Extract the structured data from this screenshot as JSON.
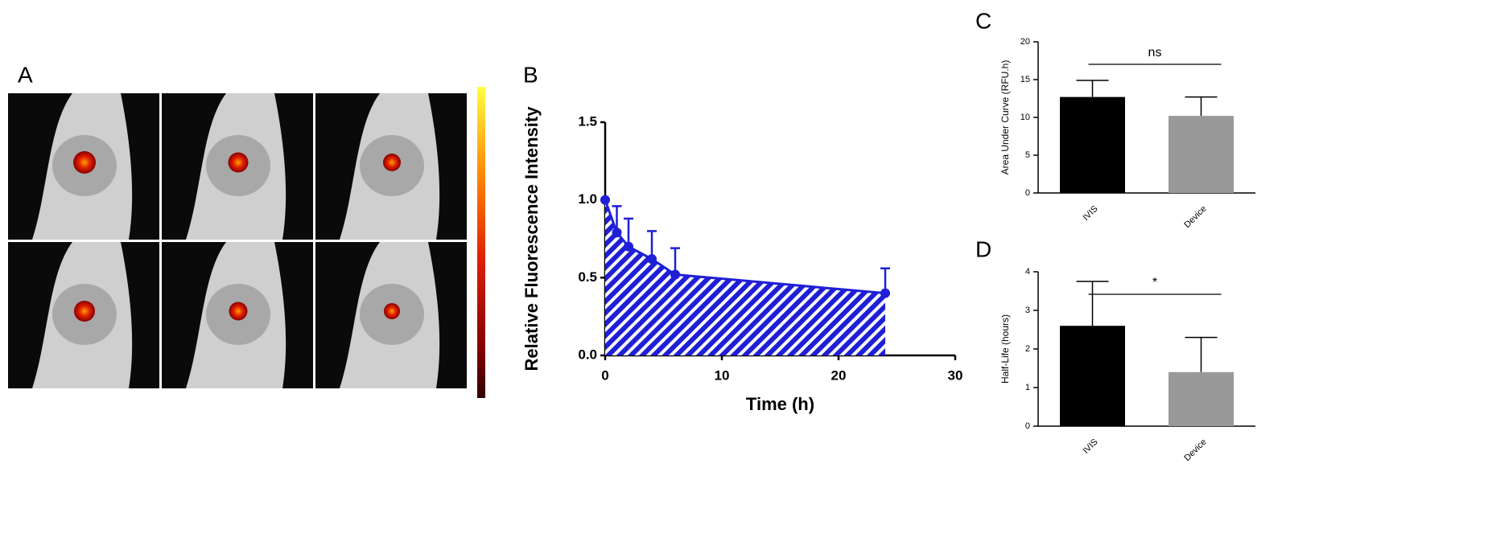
{
  "panel_labels": [
    "A",
    "B",
    "C",
    "D"
  ],
  "chart_data": [
    {
      "type": "line",
      "x_label": "Time (h)",
      "y_label": "Relative Fluorescence Intensity",
      "x": [
        0,
        1,
        2,
        4,
        6,
        24
      ],
      "values": [
        1.0,
        0.79,
        0.7,
        0.62,
        0.52,
        0.4
      ],
      "errors": [
        0,
        0.17,
        0.18,
        0.18,
        0.17,
        0.16
      ],
      "color": "#1f1fd6",
      "xlim": [
        0,
        30
      ],
      "xticks": [
        0,
        10,
        20,
        30
      ],
      "ylim": [
        0,
        1.5
      ],
      "yticks": [
        {
          "value": 0,
          "label": "0.0"
        },
        0.5,
        {
          "value": 1,
          "label": "1.0"
        },
        1.5
      ]
    },
    {
      "type": "bar",
      "y_label": "Area Under Curve (RFU.h)",
      "categories": [
        "IVIS",
        "Device"
      ],
      "values": [
        12.7,
        10.2
      ],
      "errors": [
        2.2,
        2.5
      ],
      "colors": [
        "#000000",
        "#999999"
      ],
      "ylim": [
        0,
        20
      ],
      "yticks": [
        0,
        5,
        10,
        15,
        20
      ],
      "annotation": "ns"
    },
    {
      "type": "bar",
      "y_label": "Half-Life (hours)",
      "categories": [
        "IVIS",
        "Device"
      ],
      "values": [
        2.6,
        1.4
      ],
      "errors": [
        1.15,
        0.9
      ],
      "colors": [
        "#000000",
        "#999999"
      ],
      "ylim": [
        0,
        4
      ],
      "yticks": [
        0,
        1,
        2,
        3,
        4
      ],
      "annotation": "*"
    }
  ]
}
